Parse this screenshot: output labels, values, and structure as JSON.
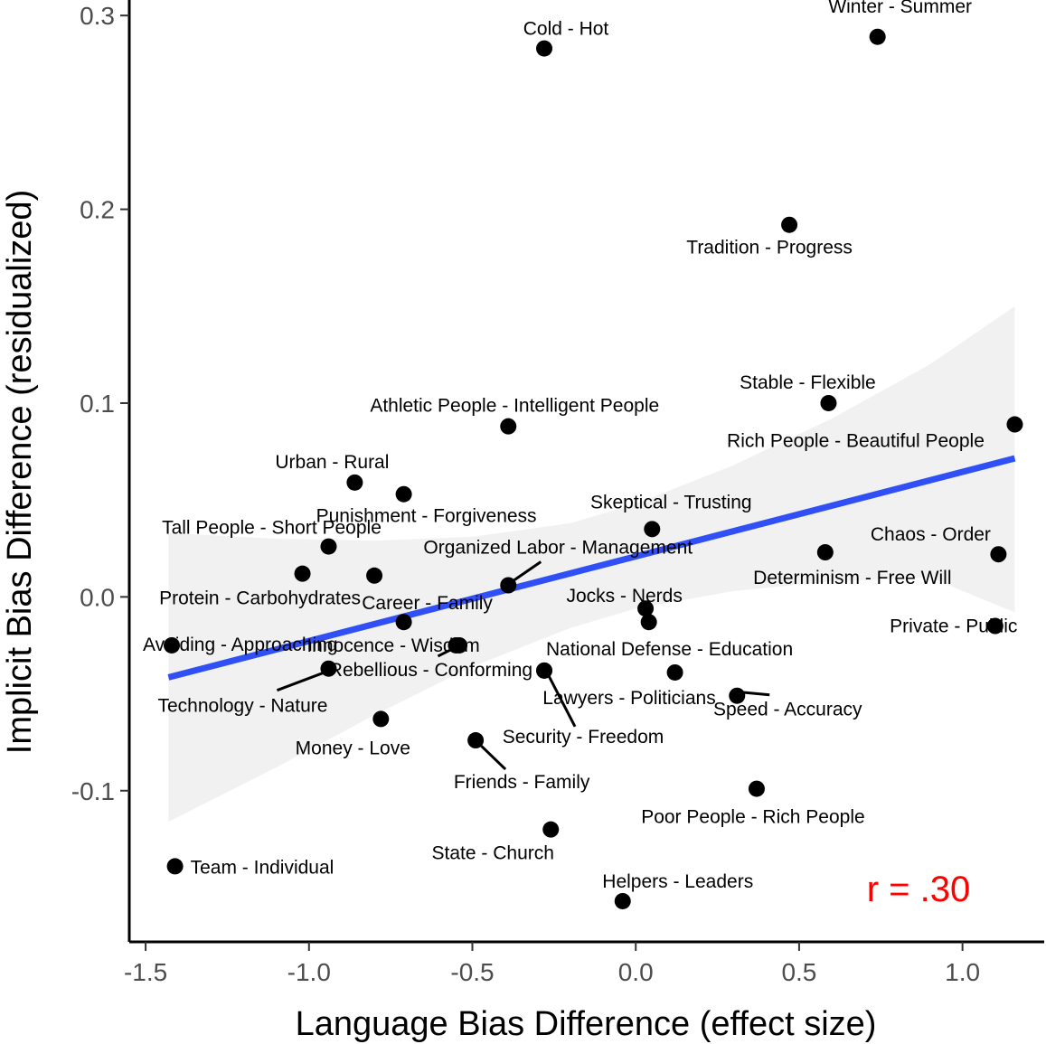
{
  "chart_data": {
    "type": "scatter",
    "xlabel": "Language Bias Difference (effect size)",
    "ylabel": "Implicit Bias Difference (residualized)",
    "xlim": [
      -1.55,
      1.25
    ],
    "ylim": [
      -0.178,
      0.308
    ],
    "x_ticks": [
      -1.5,
      -1.0,
      -0.5,
      0.0,
      0.5,
      1.0
    ],
    "x_tick_labels": [
      "-1.5",
      "-1.0",
      "-0.5",
      "0.0",
      "0.5",
      "1.0"
    ],
    "y_ticks": [
      -0.1,
      0.0,
      0.1,
      0.2,
      0.3
    ],
    "y_tick_labels": [
      "-0.1",
      "0.0",
      "0.1",
      "0.2",
      "0.3"
    ],
    "grid": false,
    "annotation": {
      "text": "r = .30",
      "color": "#ff0000",
      "position": "bottom-right"
    },
    "fit_line": {
      "color": "#3050f5",
      "start": {
        "x": -1.43,
        "y": -0.0415
      },
      "end": {
        "x": 1.16,
        "y": 0.0715
      },
      "band_color": "#ebebeb",
      "band": [
        {
          "x": -1.43,
          "lower": -0.116,
          "upper": 0.033
        },
        {
          "x": -1.1,
          "lower": -0.088,
          "upper": 0.03
        },
        {
          "x": -0.8,
          "lower": -0.061,
          "upper": 0.029
        },
        {
          "x": -0.5,
          "lower": -0.036,
          "upper": 0.031
        },
        {
          "x": -0.2,
          "lower": -0.016,
          "upper": 0.038
        },
        {
          "x": 0.0,
          "lower": -0.006,
          "upper": 0.048
        },
        {
          "x": 0.3,
          "lower": 0.003,
          "upper": 0.068
        },
        {
          "x": 0.6,
          "lower": 0.008,
          "upper": 0.092
        },
        {
          "x": 0.9,
          "lower": 0.01,
          "upper": 0.12
        },
        {
          "x": 1.16,
          "lower": -0.008,
          "upper": 0.15
        }
      ]
    },
    "points": [
      {
        "label": "Cold - Hot",
        "x": -0.28,
        "y": 0.283
      },
      {
        "label": "Winter - Summer",
        "x": 0.74,
        "y": 0.289
      },
      {
        "label": "Tradition - Progress",
        "x": 0.47,
        "y": 0.192
      },
      {
        "label": "Stable - Flexible",
        "x": 0.59,
        "y": 0.1
      },
      {
        "label": "Rich People - Beautiful People",
        "x": 1.16,
        "y": 0.089
      },
      {
        "label": "Athletic People - Intelligent People",
        "x": -0.39,
        "y": 0.088
      },
      {
        "label": "Urban - Rural",
        "x": -0.86,
        "y": 0.059
      },
      {
        "label": "Punishment - Forgiveness",
        "x": -0.71,
        "y": 0.053
      },
      {
        "label": "Skeptical - Trusting",
        "x": 0.05,
        "y": 0.035
      },
      {
        "label": "Tall People - Short People",
        "x": -0.94,
        "y": 0.026
      },
      {
        "label": "Organized Labor - Management",
        "x": -0.39,
        "y": 0.006
      },
      {
        "label": "Chaos - Order",
        "x": 1.11,
        "y": 0.022
      },
      {
        "label": "Determinism - Free Will",
        "x": 0.58,
        "y": 0.023
      },
      {
        "label": "Protein - Carbohydrates",
        "x": -1.02,
        "y": 0.012
      },
      {
        "label": "Career - Family",
        "x": -0.71,
        "y": -0.013
      },
      {
        "label": "Jocks - Nerds",
        "x": 0.04,
        "y": -0.013
      },
      {
        "label": "Private - Public",
        "x": 1.1,
        "y": -0.015
      },
      {
        "label": "Avoiding - Approaching",
        "x": -1.42,
        "y": -0.025
      },
      {
        "label": "Innocence - Wisdom",
        "x": -0.54,
        "y": -0.025
      },
      {
        "label": "Technology - Nature",
        "x": -0.94,
        "y": -0.037
      },
      {
        "label": "Rebellious - Conforming",
        "x": -0.55,
        "y": -0.025
      },
      {
        "label": "National Defense - Education",
        "x": 0.12,
        "y": -0.039
      },
      {
        "label": "Lawyers - Politicians",
        "x": -0.28,
        "y": -0.038
      },
      {
        "label": "Security - Freedom",
        "x": -0.28,
        "y": -0.038
      },
      {
        "label": "Speed - Accuracy",
        "x": 0.31,
        "y": -0.051
      },
      {
        "label": "Money - Love",
        "x": -0.78,
        "y": -0.063
      },
      {
        "label": "Friends - Family",
        "x": -0.49,
        "y": -0.074
      },
      {
        "label": "Poor People - Rich People",
        "x": 0.37,
        "y": -0.099
      },
      {
        "label": "State - Church",
        "x": -0.26,
        "y": -0.12
      },
      {
        "label": "Team - Individual",
        "x": -1.41,
        "y": -0.139
      },
      {
        "label": "Helpers - Leaders",
        "x": -0.04,
        "y": -0.157
      },
      {
        "label": "",
        "x": -0.8,
        "y": 0.011
      },
      {
        "label": "",
        "x": 0.03,
        "y": -0.006
      }
    ]
  }
}
